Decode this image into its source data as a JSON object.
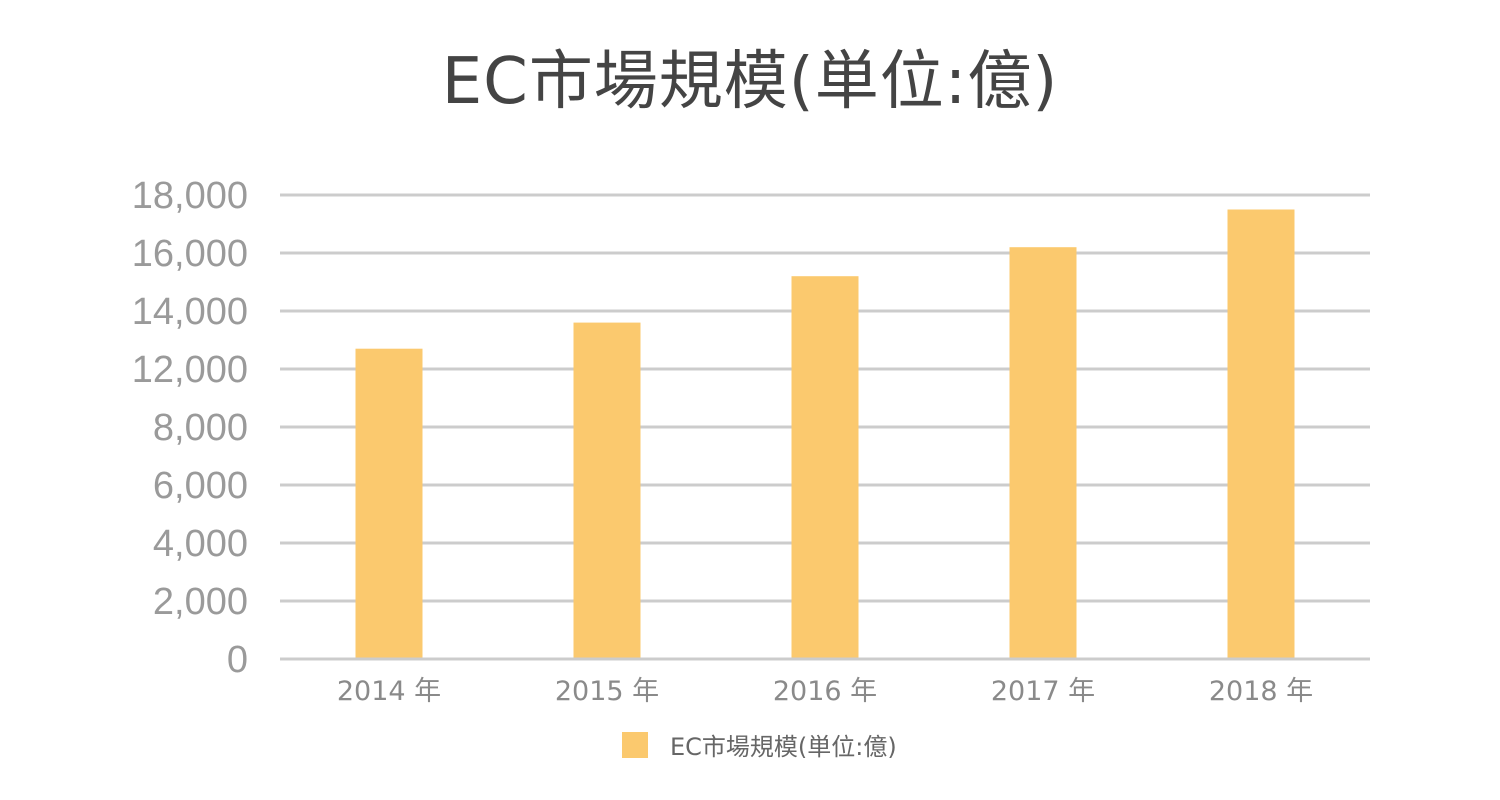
{
  "chart_data": {
    "type": "bar",
    "title": "EC市場規模(単位:億)",
    "categories": [
      "2014 年",
      "2015 年",
      "2016 年",
      "2017 年",
      "2018 年"
    ],
    "series": [
      {
        "name": "EC市場規模(単位:億)",
        "values": [
          12700,
          13600,
          15200,
          16200,
          17500
        ],
        "color": "#fbc96e"
      }
    ],
    "y_ticks": [
      "0",
      "2,000",
      "4,000",
      "6,000",
      "8,000",
      "12,000",
      "14,000",
      "16,000",
      "18,000"
    ],
    "y_tick_values": [
      0,
      2000,
      4000,
      6000,
      8000,
      12000,
      14000,
      16000,
      18000
    ],
    "ylim": [
      0,
      18000
    ],
    "xlabel": "",
    "ylabel": "",
    "grid": true,
    "grid_color": "#cccccc",
    "legend_position": "bottom"
  }
}
